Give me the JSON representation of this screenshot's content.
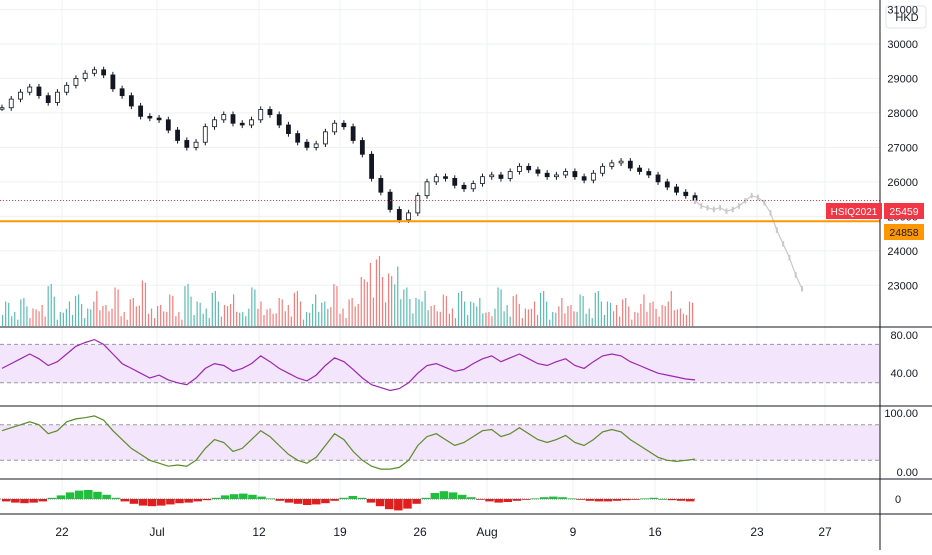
{
  "currency": "HKD",
  "colors": {
    "up": "#26a69a",
    "down": "#ef5350",
    "candle": "#131722",
    "projection": "#c9c9c9",
    "price_line": "#f23645",
    "level_line": "#ff9800",
    "rsi_line": "#9c27b0",
    "rsi_band": "#f3e5fb",
    "stoch_line": "#5b8c2a",
    "grid": "#eef0f3",
    "axis_text": "#131722"
  },
  "chart_data": [
    {
      "type": "candlestick",
      "title": "",
      "y_ticks": [
        "23000",
        "24000",
        "25000",
        "26000",
        "27000",
        "28000",
        "29000",
        "30000",
        "31000"
      ],
      "ylim": [
        22400,
        31100
      ],
      "x_ticks": [
        "22",
        "Jul",
        "12",
        "19",
        "26",
        "Aug",
        "9",
        "16",
        "23",
        "27"
      ],
      "close_series": [
        28150,
        28400,
        28600,
        28750,
        28500,
        28300,
        28600,
        28800,
        29000,
        29150,
        29250,
        29100,
        28700,
        28500,
        28200,
        27900,
        27850,
        27800,
        27500,
        27200,
        27000,
        27150,
        27600,
        27800,
        27950,
        27700,
        27650,
        27800,
        28100,
        27950,
        27650,
        27400,
        27150,
        27000,
        27100,
        27450,
        27700,
        27600,
        27200,
        26800,
        26100,
        25700,
        25200,
        24900,
        25100,
        25600,
        26000,
        26150,
        26100,
        25900,
        25800,
        25950,
        26150,
        26200,
        26100,
        26300,
        26450,
        26350,
        26250,
        26150,
        26200,
        26300,
        26150,
        26050,
        26250,
        26450,
        26550,
        26600,
        26400,
        26300,
        26200,
        26000,
        25850,
        25700,
        25600,
        25459
      ],
      "projection_series": [
        25459,
        25300,
        25250,
        25200,
        25250,
        25150,
        25200,
        25300,
        25450,
        25600,
        25550,
        25400,
        25100,
        24600,
        24200,
        23800,
        23300,
        22900
      ],
      "last_price": {
        "label": "HSIQ2021",
        "value": "25459"
      },
      "level_line": {
        "value": "24858"
      },
      "y_labels": {
        "price_tag": "25459",
        "level_tag": "24858"
      }
    },
    {
      "type": "bar",
      "name_hint": "volume",
      "values": [
        0.35,
        0.2,
        0.4,
        0.25,
        0.3,
        0.6,
        0.2,
        0.35,
        0.45,
        0.25,
        0.5,
        0.3,
        0.55,
        0.2,
        0.4,
        0.65,
        0.25,
        0.3,
        0.45,
        0.2,
        0.6,
        0.35,
        0.25,
        0.5,
        0.3,
        0.45,
        0.2,
        0.55,
        0.35,
        0.25,
        0.4,
        0.3,
        0.5,
        0.2,
        0.45,
        0.35,
        0.6,
        0.25,
        0.4,
        0.7,
        0.9,
        1.0,
        0.75,
        0.85,
        0.55,
        0.4,
        0.5,
        0.3,
        0.45,
        0.25,
        0.5,
        0.35,
        0.4,
        0.2,
        0.55,
        0.3,
        0.45,
        0.25,
        0.35,
        0.5,
        0.2,
        0.4,
        0.3,
        0.45,
        0.25,
        0.5,
        0.35,
        0.3,
        0.4,
        0.2,
        0.45,
        0.35,
        0.3,
        0.5,
        0.25,
        0.35
      ]
    },
    {
      "type": "line",
      "name_hint": "rsi",
      "y_ticks": [
        "40.00",
        "80.00"
      ],
      "ylim": [
        10,
        85
      ],
      "band": [
        30,
        70
      ],
      "values": [
        45,
        50,
        55,
        60,
        55,
        48,
        52,
        60,
        68,
        72,
        75,
        70,
        60,
        50,
        45,
        40,
        35,
        38,
        33,
        30,
        28,
        35,
        45,
        50,
        48,
        42,
        45,
        50,
        58,
        52,
        45,
        40,
        35,
        32,
        38,
        48,
        56,
        52,
        44,
        35,
        28,
        25,
        22,
        24,
        30,
        40,
        48,
        50,
        46,
        42,
        44,
        50,
        55,
        58,
        52,
        56,
        60,
        55,
        50,
        48,
        52,
        55,
        48,
        45,
        52,
        58,
        60,
        58,
        52,
        48,
        44,
        40,
        38,
        36,
        34,
        33
      ]
    },
    {
      "type": "line",
      "name_hint": "stochastic",
      "y_ticks": [
        "0.00",
        "100.00"
      ],
      "ylim": [
        -10,
        105
      ],
      "band": [
        20,
        80
      ],
      "values": [
        70,
        75,
        80,
        85,
        80,
        65,
        70,
        85,
        90,
        92,
        95,
        88,
        70,
        55,
        40,
        30,
        20,
        15,
        10,
        12,
        10,
        20,
        40,
        55,
        50,
        35,
        40,
        55,
        70,
        60,
        45,
        30,
        20,
        15,
        25,
        45,
        65,
        55,
        35,
        20,
        10,
        5,
        5,
        8,
        20,
        45,
        60,
        65,
        55,
        45,
        50,
        60,
        70,
        72,
        60,
        65,
        75,
        65,
        55,
        50,
        55,
        62,
        50,
        45,
        55,
        68,
        72,
        68,
        55,
        45,
        35,
        25,
        20,
        18,
        20,
        22
      ]
    },
    {
      "type": "bar",
      "name_hint": "histogram",
      "y_ticks": [
        "0"
      ],
      "ylim": [
        -1,
        1
      ],
      "values": [
        -0.2,
        -0.3,
        -0.35,
        -0.3,
        -0.2,
        0.1,
        0.3,
        0.55,
        0.7,
        0.75,
        0.6,
        0.35,
        0.1,
        -0.2,
        -0.4,
        -0.55,
        -0.6,
        -0.55,
        -0.45,
        -0.35,
        -0.3,
        -0.2,
        -0.1,
        0.1,
        0.3,
        0.4,
        0.45,
        0.35,
        0.2,
        0.05,
        -0.15,
        -0.3,
        -0.4,
        -0.5,
        -0.45,
        -0.35,
        -0.15,
        0.1,
        0.25,
        0.1,
        -0.3,
        -0.6,
        -0.85,
        -0.95,
        -0.8,
        -0.4,
        0.1,
        0.5,
        0.65,
        0.55,
        0.35,
        0.15,
        -0.05,
        -0.2,
        -0.3,
        -0.25,
        -0.15,
        -0.05,
        0.05,
        0.15,
        0.2,
        0.15,
        0.05,
        -0.05,
        -0.15,
        -0.2,
        -0.2,
        -0.15,
        -0.1,
        -0.05,
        0.05,
        0.1,
        0.0,
        -0.1,
        -0.15,
        -0.2
      ]
    }
  ]
}
